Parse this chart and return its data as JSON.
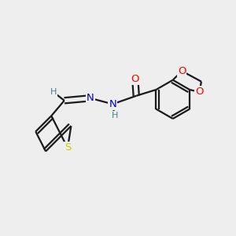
{
  "bg_color": "#eeeeee",
  "bond_color": "#1a1a1a",
  "atom_colors": {
    "O": "#ff0000",
    "N": "#0000cc",
    "S": "#cccc00",
    "H": "#4a8080",
    "C": "#1a1a1a"
  },
  "font_size": 9.5,
  "lw": 1.6
}
